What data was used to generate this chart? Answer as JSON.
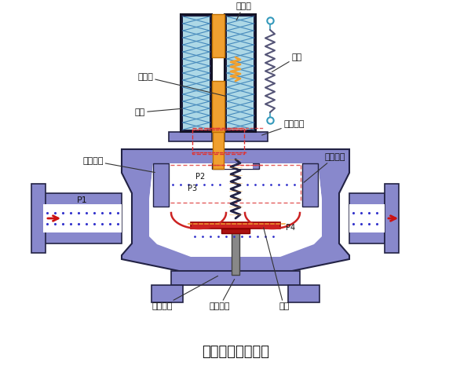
{
  "title": "管道联系式电磁阀",
  "title_fontsize": 13,
  "bg_color": "#ffffff",
  "valve_color": "#8888cc",
  "valve_edge": "#222244",
  "coil_bg": "#add8e6",
  "coil_line": "#4488bb",
  "iron_color": "#f0a030",
  "spring_dark": "#222244",
  "spring_orange": "#f0a030",
  "diaphragm_red": "#cc2222",
  "dot_blue": "#3333cc",
  "arrow_red": "#cc1111",
  "label_color": "#111111",
  "hatch_red": "#dd3333",
  "labels": {
    "dingtiexin": "定铁心",
    "dongtiexin": "动铁心",
    "xianquan": "线圈",
    "pinghengkudao": "平衡孔道",
    "danhuang": "弹簧",
    "daovalvebase": "导阀阀座",
    "xiekongkudao": "泄孔孔道",
    "zhuyuanzuo": "主阀阀座",
    "zhuyuanzhi": "主阀阀芯",
    "mopiece": "膜片"
  }
}
